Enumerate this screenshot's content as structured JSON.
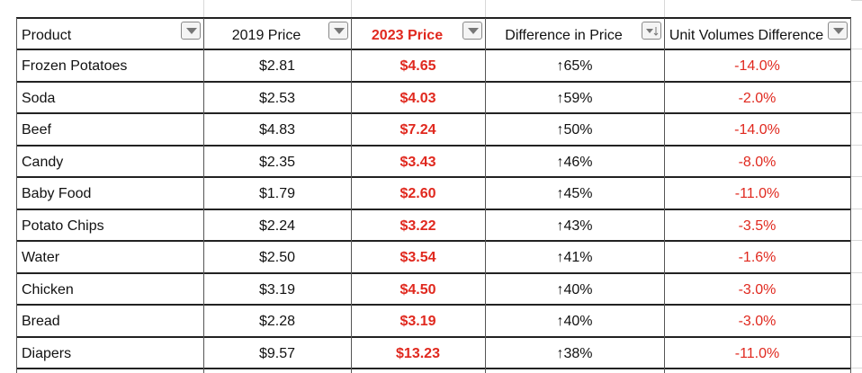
{
  "table": {
    "columns": [
      "Product",
      "2019 Price",
      "2023 Price",
      "Difference in Price",
      "Unit Volumes Difference"
    ],
    "rows": [
      [
        "Frozen Potatoes",
        "$2.81",
        "$4.65",
        "↑65%",
        "-14.0%"
      ],
      [
        "Soda",
        "$2.53",
        "$4.03",
        "↑59%",
        "-2.0%"
      ],
      [
        "Beef",
        "$4.83",
        "$7.24",
        "↑50%",
        "-14.0%"
      ],
      [
        "Candy",
        "$2.35",
        "$3.43",
        "↑46%",
        "-8.0%"
      ],
      [
        "Baby Food",
        "$1.79",
        "$2.60",
        "↑45%",
        "-11.0%"
      ],
      [
        "Potato Chips",
        "$2.24",
        "$3.22",
        "↑43%",
        "-3.5%"
      ],
      [
        "Water",
        "$2.50",
        "$3.54",
        "↑41%",
        "-1.6%"
      ],
      [
        "Chicken",
        "$3.19",
        "$4.50",
        "↑40%",
        "-3.0%"
      ],
      [
        "Bread",
        "$2.28",
        "$3.19",
        "↑40%",
        "-3.0%"
      ],
      [
        "Diapers",
        "$9.57",
        "$13.23",
        "↑38%",
        "-11.0%"
      ]
    ]
  }
}
